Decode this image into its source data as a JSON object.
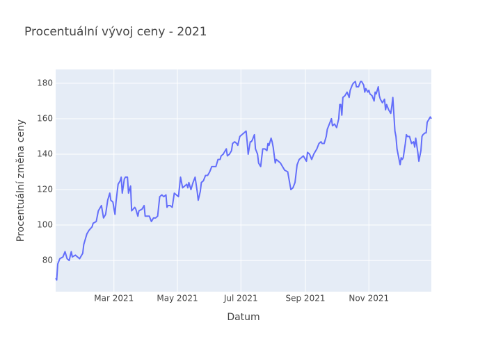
{
  "chart_data": {
    "type": "line",
    "title": "Procentuální vývoj ceny - 2021",
    "xlabel": "Datum",
    "ylabel": "Procentuální změna ceny",
    "color": "#636efa",
    "grid": true,
    "x": [
      "2021-01-04",
      "2021-01-05",
      "2021-01-06",
      "2021-01-08",
      "2021-01-11",
      "2021-01-13",
      "2021-01-15",
      "2021-01-17",
      "2021-01-19",
      "2021-01-20",
      "2021-01-23",
      "2021-01-25",
      "2021-01-27",
      "2021-01-29",
      "2021-01-30",
      "2021-01-31",
      "2021-02-03",
      "2021-02-05",
      "2021-02-08",
      "2021-02-09",
      "2021-02-12",
      "2021-02-14",
      "2021-02-16",
      "2021-02-17",
      "2021-02-19",
      "2021-02-21",
      "2021-02-23",
      "2021-02-25",
      "2021-02-26",
      "2021-02-28",
      "2021-03-02",
      "2021-03-03",
      "2021-03-05",
      "2021-03-07",
      "2021-03-08",
      "2021-03-09",
      "2021-03-11",
      "2021-03-12",
      "2021-03-14",
      "2021-03-15",
      "2021-03-17",
      "2021-03-18",
      "2021-03-21",
      "2021-03-22",
      "2021-03-24",
      "2021-03-25",
      "2021-03-28",
      "2021-03-30",
      "2021-03-31",
      "2021-04-02",
      "2021-04-04",
      "2021-04-06",
      "2021-04-08",
      "2021-04-10",
      "2021-04-12",
      "2021-04-14",
      "2021-04-16",
      "2021-04-18",
      "2021-04-20",
      "2021-04-21",
      "2021-04-22",
      "2021-04-24",
      "2021-04-26",
      "2021-04-28",
      "2021-04-30",
      "2021-05-02",
      "2021-05-04",
      "2021-05-06",
      "2021-05-08",
      "2021-05-10",
      "2021-05-11",
      "2021-05-12",
      "2021-05-14",
      "2021-05-16",
      "2021-05-18",
      "2021-05-20",
      "2021-05-21",
      "2021-05-23",
      "2021-05-24",
      "2021-05-26",
      "2021-05-28",
      "2021-05-30",
      "2021-06-01",
      "2021-06-03",
      "2021-06-05",
      "2021-06-07",
      "2021-06-09",
      "2021-06-11",
      "2021-06-12",
      "2021-06-14",
      "2021-06-16",
      "2021-06-17",
      "2021-06-18",
      "2021-06-20",
      "2021-06-22",
      "2021-06-23",
      "2021-06-25",
      "2021-06-27",
      "2021-06-28",
      "2021-06-30",
      "2021-07-02",
      "2021-07-04",
      "2021-07-06",
      "2021-07-07",
      "2021-07-08",
      "2021-07-10",
      "2021-07-11",
      "2021-07-12",
      "2021-07-14",
      "2021-07-15",
      "2021-07-17",
      "2021-07-18",
      "2021-07-20",
      "2021-07-22",
      "2021-07-24",
      "2021-07-26",
      "2021-07-27",
      "2021-07-28",
      "2021-07-30",
      "2021-07-31",
      "2021-08-01",
      "2021-08-03",
      "2021-08-04",
      "2021-08-06",
      "2021-08-08",
      "2021-08-10",
      "2021-08-12",
      "2021-08-15",
      "2021-08-18",
      "2021-08-20",
      "2021-08-22",
      "2021-08-24",
      "2021-08-26",
      "2021-08-28",
      "2021-08-30",
      "2021-09-01",
      "2021-09-02",
      "2021-09-03",
      "2021-09-05",
      "2021-09-07",
      "2021-09-09",
      "2021-09-10",
      "2021-09-12",
      "2021-09-14",
      "2021-09-16",
      "2021-09-17",
      "2021-09-19",
      "2021-09-21",
      "2021-09-22",
      "2021-09-24",
      "2021-09-26",
      "2021-09-27",
      "2021-09-29",
      "2021-10-01",
      "2021-10-03",
      "2021-10-04",
      "2021-10-05",
      "2021-10-06",
      "2021-10-07",
      "2021-10-09",
      "2021-10-11",
      "2021-10-13",
      "2021-10-14",
      "2021-10-16",
      "2021-10-17",
      "2021-10-19",
      "2021-10-20",
      "2021-10-22",
      "2021-10-24",
      "2021-10-25",
      "2021-10-27",
      "2021-10-28",
      "2021-10-29",
      "2021-10-31",
      "2021-11-01",
      "2021-11-02",
      "2021-11-04",
      "2021-11-06",
      "2021-11-07",
      "2021-11-08",
      "2021-11-10",
      "2021-11-11",
      "2021-11-12",
      "2021-11-14",
      "2021-11-16",
      "2021-11-17",
      "2021-11-18",
      "2021-11-20",
      "2021-11-22",
      "2021-11-23",
      "2021-11-24",
      "2021-11-26",
      "2021-11-27",
      "2021-11-28",
      "2021-11-30",
      "2021-12-01",
      "2021-12-02",
      "2021-12-03",
      "2021-12-04",
      "2021-12-06",
      "2021-12-07",
      "2021-12-08",
      "2021-12-10",
      "2021-12-11",
      "2021-12-12",
      "2021-12-14",
      "2021-12-15",
      "2021-12-16",
      "2021-12-18",
      "2021-12-19",
      "2021-12-21",
      "2021-12-22",
      "2021-12-23",
      "2021-12-25",
      "2021-12-26",
      "2021-12-27",
      "2021-12-29",
      "2021-12-30",
      "2021-12-31"
    ],
    "values": [
      70,
      69,
      78,
      81,
      82,
      85,
      81,
      80,
      85,
      82,
      83,
      82,
      81,
      83,
      84,
      89,
      95,
      97,
      99,
      101,
      102,
      108,
      110,
      111,
      104,
      106,
      114,
      118,
      114,
      113,
      106,
      113,
      123,
      125,
      127,
      118,
      126,
      127,
      127,
      118,
      122,
      108,
      110,
      109,
      105,
      108,
      109,
      111,
      105,
      105,
      105,
      102,
      104,
      104,
      105,
      116,
      117,
      116,
      117,
      110,
      111,
      111,
      110,
      118,
      117,
      116,
      127,
      121,
      122,
      123,
      121,
      124,
      120,
      124,
      127,
      119,
      114,
      119,
      124,
      125,
      128,
      128,
      130,
      133,
      133,
      133,
      137,
      137,
      139,
      140,
      142,
      143,
      139,
      140,
      142,
      146,
      147,
      146,
      145,
      150,
      151,
      152,
      153,
      147,
      140,
      147,
      147,
      148,
      151,
      143,
      140,
      135,
      133,
      143,
      143,
      142,
      146,
      145,
      149,
      147,
      144,
      135,
      137,
      136,
      135,
      133,
      131,
      130,
      120,
      121,
      124,
      134,
      137,
      138,
      139,
      137,
      136,
      141,
      140,
      137,
      140,
      141,
      143,
      146,
      147,
      146,
      146,
      150,
      154,
      157,
      160,
      156,
      157,
      155,
      160,
      168,
      168,
      162,
      172,
      173,
      175,
      172,
      176,
      179,
      180,
      181,
      178,
      178,
      181,
      181,
      179,
      175,
      177,
      175,
      176,
      174,
      173,
      170,
      175,
      174,
      178,
      173,
      171,
      169,
      171,
      165,
      168,
      165,
      163,
      167,
      172,
      153,
      150,
      143,
      137,
      134,
      138,
      137,
      138,
      146,
      151,
      150,
      150,
      148,
      146,
      147,
      144,
      149,
      141,
      136,
      142,
      150,
      151,
      152,
      152,
      158,
      160,
      161,
      160
    ],
    "xlim": [
      "2021-01-04",
      "2021-12-31"
    ],
    "xticks": [
      {
        "value": "2021-03-01",
        "label": "Mar 2021"
      },
      {
        "value": "2021-05-01",
        "label": "May 2021"
      },
      {
        "value": "2021-07-01",
        "label": "Jul 2021"
      },
      {
        "value": "2021-09-01",
        "label": "Sep 2021"
      },
      {
        "value": "2021-11-01",
        "label": "Nov 2021"
      }
    ],
    "ylim": [
      62.4,
      187.8
    ],
    "yticks": [
      80,
      100,
      120,
      140,
      160,
      180
    ]
  }
}
